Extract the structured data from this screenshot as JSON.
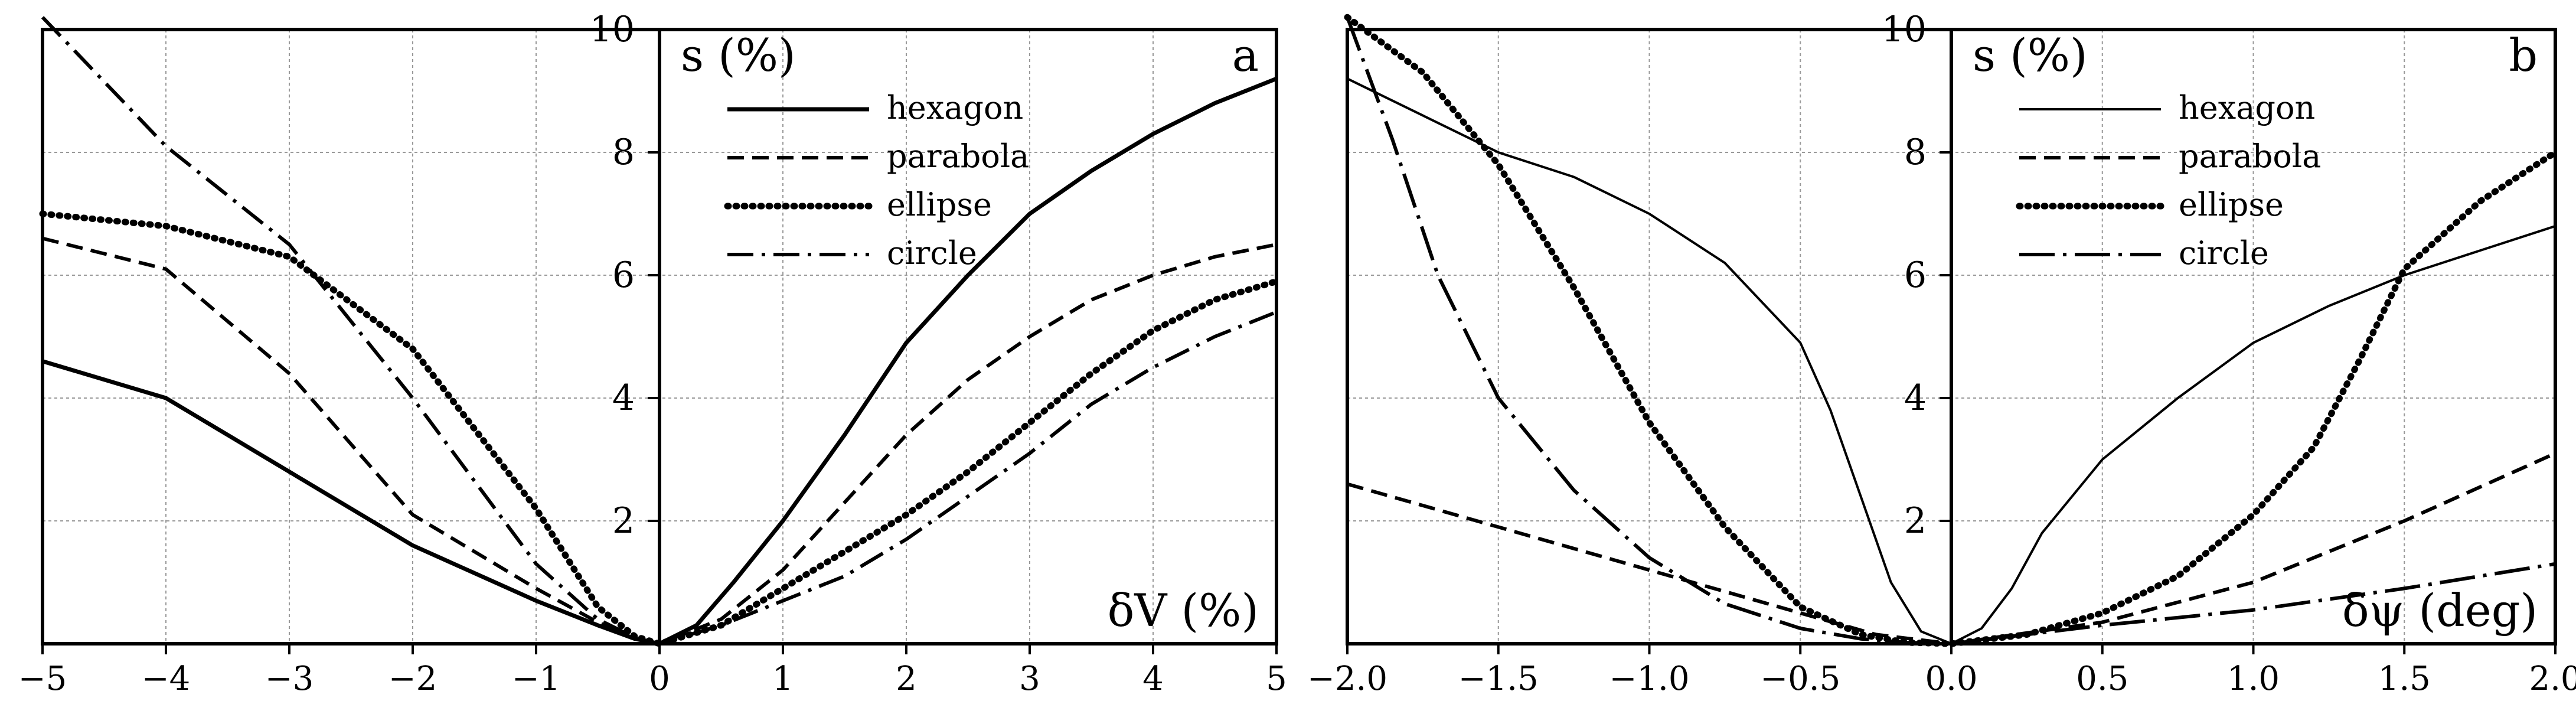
{
  "chart_data": [
    {
      "type": "line",
      "panel_label": "a",
      "ylabel": "s (%)",
      "xlabel": "δV (%)",
      "xlim": [
        -5,
        5
      ],
      "ylim": [
        0,
        10
      ],
      "xticks": [
        -5,
        -4,
        -3,
        -2,
        -1,
        0,
        1,
        2,
        3,
        4,
        5
      ],
      "xtick_labels": [
        "−5",
        "−4",
        "−3",
        "−2",
        "−1",
        "0",
        "1",
        "2",
        "3",
        "4",
        "5"
      ],
      "yticks": [
        2,
        4,
        6,
        8,
        10
      ],
      "ytick_labels": [
        "2",
        "4",
        "6",
        "8",
        "10"
      ],
      "grid": true,
      "legend_position": "top-right",
      "series": [
        {
          "name": "hexagon",
          "style": "solid",
          "x": [
            -5,
            -4,
            -3,
            -2,
            -1,
            -0.5,
            -0.2,
            0,
            0.3,
            0.6,
            1,
            1.5,
            2,
            2.5,
            3,
            3.5,
            4,
            4.5,
            5
          ],
          "y": [
            4.6,
            4.0,
            2.8,
            1.6,
            0.7,
            0.3,
            0.08,
            0,
            0.3,
            1.0,
            2.0,
            3.4,
            4.9,
            6.0,
            7.0,
            7.7,
            8.3,
            8.8,
            9.2
          ]
        },
        {
          "name": "parabola",
          "style": "dashed",
          "x": [
            -5,
            -4,
            -3,
            -2,
            -1,
            -0.5,
            -0.2,
            0,
            0.5,
            1,
            1.5,
            2,
            2.5,
            3,
            3.5,
            4,
            4.5,
            5
          ],
          "y": [
            6.6,
            6.1,
            4.4,
            2.1,
            0.9,
            0.35,
            0.08,
            0,
            0.4,
            1.2,
            2.3,
            3.4,
            4.3,
            5.0,
            5.6,
            6.0,
            6.3,
            6.5
          ]
        },
        {
          "name": "ellipse",
          "style": "dotted",
          "x": [
            -5,
            -4,
            -3,
            -2,
            -1,
            -0.5,
            -0.2,
            0,
            0.5,
            1,
            1.5,
            2,
            2.5,
            3,
            3.5,
            4,
            4.5,
            5
          ],
          "y": [
            7.0,
            6.8,
            6.3,
            4.8,
            2.2,
            0.6,
            0.12,
            0,
            0.3,
            0.9,
            1.5,
            2.1,
            2.8,
            3.6,
            4.4,
            5.1,
            5.6,
            5.9
          ]
        },
        {
          "name": "circle",
          "style": "dash-dot",
          "x": [
            -5,
            -4,
            -3,
            -2,
            -1,
            -0.5,
            -0.2,
            0,
            0.5,
            1,
            1.5,
            2,
            2.5,
            3,
            3.5,
            4,
            4.5,
            5
          ],
          "y": [
            10.2,
            8.1,
            6.5,
            4.0,
            1.3,
            0.4,
            0.1,
            0,
            0.3,
            0.7,
            1.1,
            1.7,
            2.4,
            3.1,
            3.9,
            4.5,
            5.0,
            5.4
          ]
        }
      ]
    },
    {
      "type": "line",
      "panel_label": "b",
      "ylabel": "s (%)",
      "xlabel": "δψ (deg)",
      "xlim": [
        -2.0,
        2.0
      ],
      "ylim": [
        0,
        10
      ],
      "xticks": [
        -2.0,
        -1.5,
        -1.0,
        -0.5,
        0.0,
        0.5,
        1.0,
        1.5,
        2.0
      ],
      "xtick_labels": [
        "−2.0",
        "−1.5",
        "−1.0",
        "−0.5",
        "0.0",
        "0.5",
        "1.0",
        "1.5",
        "2.0"
      ],
      "yticks": [
        2,
        4,
        6,
        8,
        10
      ],
      "ytick_labels": [
        "2",
        "4",
        "6",
        "8",
        "10"
      ],
      "grid": true,
      "legend_position": "top-right",
      "series": [
        {
          "name": "hexagon",
          "style": "solid",
          "x": [
            -2.0,
            -1.75,
            -1.5,
            -1.25,
            -1.0,
            -0.75,
            -0.5,
            -0.4,
            -0.3,
            -0.2,
            -0.1,
            0,
            0.1,
            0.2,
            0.3,
            0.5,
            0.75,
            1.0,
            1.25,
            1.5,
            1.75,
            2.0
          ],
          "y": [
            9.2,
            8.6,
            8.0,
            7.6,
            7.0,
            6.2,
            4.9,
            3.8,
            2.4,
            1.0,
            0.2,
            0,
            0.25,
            0.9,
            1.8,
            3.0,
            4.0,
            4.9,
            5.5,
            6.0,
            6.4,
            6.8
          ]
        },
        {
          "name": "parabola",
          "style": "dashed",
          "x": [
            -2.0,
            -1.5,
            -1.0,
            -0.5,
            -0.25,
            0,
            0.5,
            1.0,
            1.5,
            2.0
          ],
          "y": [
            2.6,
            1.9,
            1.2,
            0.5,
            0.15,
            0,
            0.35,
            1.0,
            2.0,
            3.1
          ]
        },
        {
          "name": "ellipse",
          "style": "dotted",
          "x": [
            -2.0,
            -1.75,
            -1.5,
            -1.25,
            -1.0,
            -0.75,
            -0.5,
            -0.3,
            -0.15,
            0,
            0.25,
            0.5,
            0.75,
            1.0,
            1.2,
            1.35,
            1.5,
            1.75,
            2.0
          ],
          "y": [
            10.2,
            9.3,
            7.8,
            5.8,
            3.6,
            1.9,
            0.6,
            0.15,
            0.02,
            0,
            0.15,
            0.5,
            1.1,
            2.1,
            3.2,
            4.6,
            6.1,
            7.2,
            8.0
          ]
        },
        {
          "name": "circle",
          "style": "dash-dot",
          "x": [
            -2.0,
            -1.85,
            -1.7,
            -1.5,
            -1.25,
            -1.0,
            -0.75,
            -0.5,
            -0.3,
            -0.15,
            0,
            0.5,
            1.0,
            1.5,
            2.0
          ],
          "y": [
            10.2,
            8.2,
            6.0,
            4.0,
            2.5,
            1.4,
            0.65,
            0.25,
            0.08,
            0.02,
            0,
            0.3,
            0.55,
            0.9,
            1.3
          ]
        }
      ]
    }
  ]
}
